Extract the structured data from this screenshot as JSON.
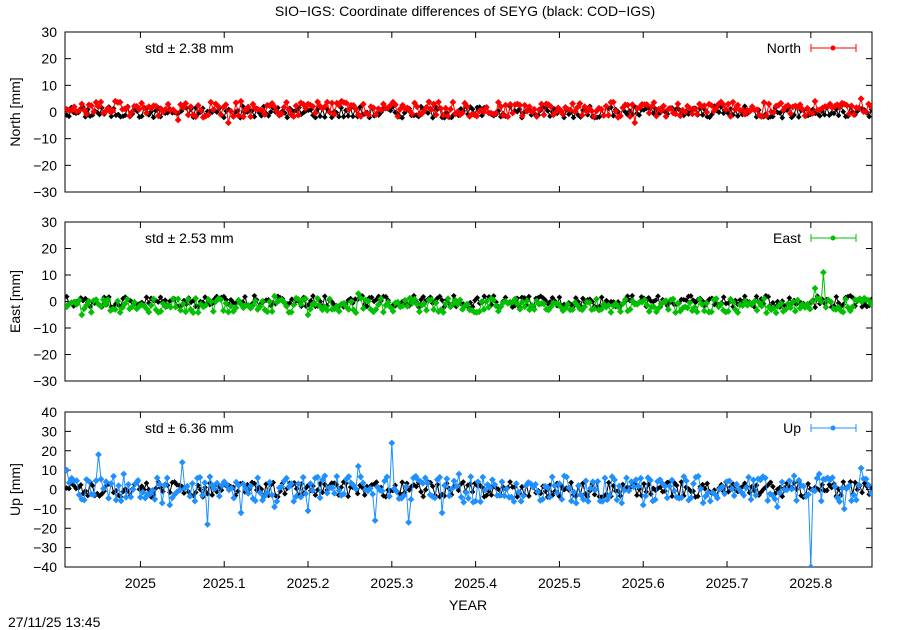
{
  "title": "SIO−IGS: Coordinate differences of SEYG (black: COD−IGS)",
  "timestamp": "27/11/25 13:45",
  "xlabel": "YEAR",
  "x_ticks": [
    "2025",
    "2025.1",
    "2025.2",
    "2025.3",
    "2025.4",
    "2025.5",
    "2025.6",
    "2025.7",
    "2025.8"
  ],
  "chart_data": [
    {
      "type": "line",
      "name": "North",
      "ylabel": "North [mm]",
      "std_label": "std ± 2.38 mm",
      "color": "#ff0000",
      "reference_color": "#000000",
      "xlim": [
        2024.91,
        2025.873
      ],
      "ylim": [
        -30,
        30
      ],
      "y_ticks": [
        "30",
        "20",
        "10",
        "0",
        "−10",
        "−20",
        "−30"
      ],
      "series": [
        {
          "name": "North",
          "x": [
            2024.912,
            2024.93,
            2024.95,
            2024.97,
            2024.99,
            2025.01,
            2025.03,
            2025.045,
            2025.06,
            2025.075,
            2025.09,
            2025.105,
            2025.12,
            2025.14,
            2025.16,
            2025.18,
            2025.2,
            2025.22,
            2025.24,
            2025.26,
            2025.275,
            2025.29,
            2025.31,
            2025.33,
            2025.35,
            2025.37,
            2025.39,
            2025.41,
            2025.43,
            2025.45,
            2025.47,
            2025.49,
            2025.51,
            2025.53,
            2025.55,
            2025.57,
            2025.59,
            2025.61,
            2025.63,
            2025.65,
            2025.67,
            2025.69,
            2025.71,
            2025.73,
            2025.75,
            2025.77,
            2025.79,
            2025.805,
            2025.82,
            2025.84,
            2025.86,
            2025.872
          ],
          "y": [
            1,
            3,
            2,
            4,
            0,
            2,
            1,
            -3,
            2,
            -2,
            3,
            -4,
            4,
            1,
            2,
            -1,
            3,
            2,
            4,
            -1,
            2,
            3,
            1,
            2,
            3,
            1,
            2,
            0,
            2,
            3,
            1,
            2,
            1,
            2,
            1,
            -2,
            -4,
            2,
            1,
            0,
            2,
            3,
            1,
            2,
            3,
            2,
            1,
            4,
            2,
            3,
            5,
            2
          ]
        }
      ]
    },
    {
      "type": "line",
      "name": "East",
      "ylabel": "East [mm]",
      "std_label": "std ± 2.53 mm",
      "color": "#00c000",
      "reference_color": "#000000",
      "xlim": [
        2024.91,
        2025.873
      ],
      "ylim": [
        -30,
        30
      ],
      "y_ticks": [
        "30",
        "20",
        "10",
        "0",
        "−10",
        "−20",
        "−30"
      ],
      "series": [
        {
          "name": "East",
          "x": [
            2024.912,
            2024.93,
            2024.95,
            2024.97,
            2024.99,
            2025.01,
            2025.03,
            2025.045,
            2025.06,
            2025.075,
            2025.09,
            2025.105,
            2025.12,
            2025.14,
            2025.16,
            2025.18,
            2025.2,
            2025.22,
            2025.24,
            2025.26,
            2025.275,
            2025.29,
            2025.31,
            2025.33,
            2025.35,
            2025.37,
            2025.39,
            2025.41,
            2025.43,
            2025.45,
            2025.47,
            2025.49,
            2025.51,
            2025.53,
            2025.55,
            2025.57,
            2025.59,
            2025.61,
            2025.63,
            2025.65,
            2025.67,
            2025.69,
            2025.71,
            2025.73,
            2025.75,
            2025.77,
            2025.79,
            2025.805,
            2025.815,
            2025.83,
            2025.85,
            2025.872
          ],
          "y": [
            -2,
            -5,
            -1,
            -3,
            -2,
            -4,
            -2,
            1,
            -3,
            -2,
            0,
            -4,
            -1,
            -3,
            2,
            -4,
            -5,
            -2,
            -1,
            3,
            -3,
            -4,
            -2,
            -1,
            -3,
            -2,
            -1,
            -3,
            -2,
            -1,
            -3,
            -2,
            -1,
            -2,
            -3,
            -2,
            -1,
            -2,
            -3,
            -2,
            -1,
            -2,
            -3,
            -1,
            -2,
            -3,
            -1,
            5,
            11,
            -3,
            -2,
            -1
          ]
        }
      ]
    },
    {
      "type": "line",
      "name": "Up",
      "ylabel": "Up [mm]",
      "std_label": "std ± 6.36 mm",
      "color": "#1e90ff",
      "reference_color": "#000000",
      "xlim": [
        2024.91,
        2025.873
      ],
      "ylim": [
        -40,
        40
      ],
      "y_ticks": [
        "40",
        "30",
        "20",
        "10",
        "0",
        "−10",
        "−20",
        "−30",
        "−40"
      ],
      "series": [
        {
          "name": "Up",
          "x": [
            2024.912,
            2024.93,
            2024.95,
            2024.965,
            2024.98,
            2025.0,
            2025.02,
            2025.035,
            2025.05,
            2025.065,
            2025.08,
            2025.1,
            2025.12,
            2025.14,
            2025.16,
            2025.18,
            2025.2,
            2025.22,
            2025.24,
            2025.26,
            2025.28,
            2025.3,
            2025.32,
            2025.34,
            2025.36,
            2025.38,
            2025.4,
            2025.42,
            2025.44,
            2025.46,
            2025.48,
            2025.5,
            2025.52,
            2025.54,
            2025.56,
            2025.58,
            2025.6,
            2025.62,
            2025.64,
            2025.66,
            2025.68,
            2025.7,
            2025.72,
            2025.74,
            2025.76,
            2025.78,
            2025.8,
            2025.81,
            2025.82,
            2025.84,
            2025.86,
            2025.872
          ],
          "y": [
            10,
            -5,
            18,
            3,
            8,
            -4,
            6,
            -8,
            14,
            -6,
            -18,
            4,
            -12,
            6,
            -9,
            3,
            -11,
            7,
            -3,
            12,
            -16,
            24,
            -17,
            6,
            -12,
            8,
            -6,
            5,
            -4,
            2,
            -5,
            3,
            -7,
            4,
            -3,
            6,
            -8,
            5,
            -4,
            3,
            -6,
            4,
            -3,
            5,
            -9,
            7,
            -40,
            8,
            6,
            -10,
            11,
            -2
          ]
        }
      ]
    }
  ]
}
